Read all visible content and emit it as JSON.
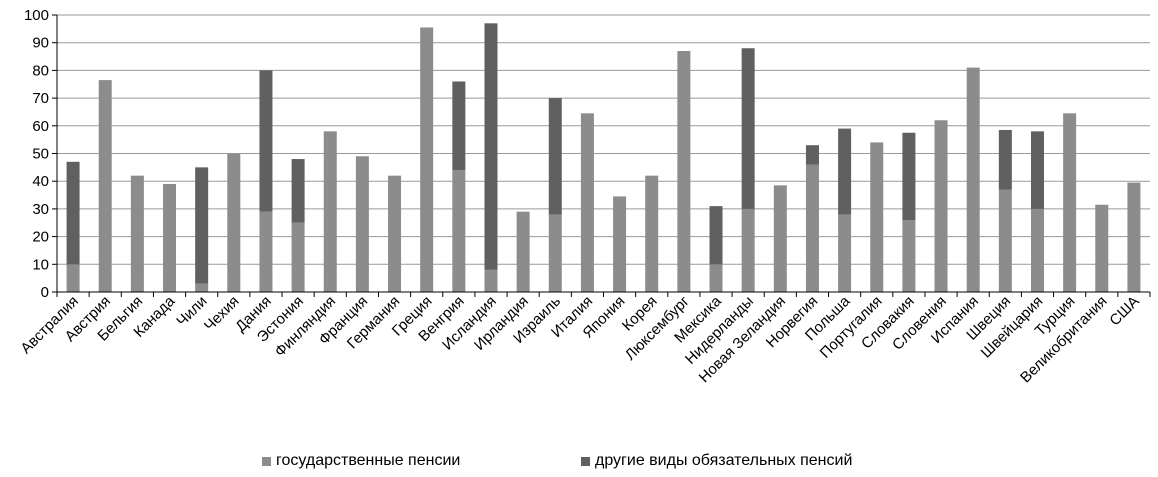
{
  "chart_data": {
    "type": "bar",
    "stacked": true,
    "categories": [
      "Австралия",
      "Австрия",
      "Бельгия",
      "Канада",
      "Чили",
      "Чехия",
      "Дания",
      "Эстония",
      "Финляндия",
      "Франция",
      "Германия",
      "Греция",
      "Венгрия",
      "Исландия",
      "Ирландия",
      "Израиль",
      "Италия",
      "Япония",
      "Корея",
      "Люксембург",
      "Мексика",
      "Нидерланды",
      "Новая Зеландия",
      "Норвегия",
      "Польша",
      "Португалия",
      "Словакия",
      "Словения",
      "Испания",
      "Швеция",
      "Швейцария",
      "Турция",
      "Великобритания",
      "США"
    ],
    "series": [
      {
        "name": "государственные пенсии",
        "color": "#8c8c8c",
        "values": [
          10,
          76.5,
          42,
          39,
          3,
          50,
          29,
          25,
          58,
          49,
          42,
          95.5,
          44,
          8,
          29,
          28,
          64.5,
          34.5,
          42,
          87,
          10,
          30,
          38.5,
          46,
          28,
          54,
          26,
          62,
          81,
          37,
          30,
          64.5,
          31.5,
          39.5
        ]
      },
      {
        "name": "другие виды обязательных пенсий",
        "color": "#606060",
        "values": [
          37,
          0,
          0,
          0,
          42,
          0,
          51,
          23,
          0,
          0,
          0,
          0,
          32,
          89,
          0,
          42,
          0,
          0,
          0,
          0,
          21,
          58,
          0,
          7,
          31,
          0,
          31.5,
          0,
          0,
          21.5,
          28,
          0,
          0,
          0
        ]
      }
    ],
    "ylim": [
      0,
      100
    ],
    "yticks": [
      0,
      10,
      20,
      30,
      40,
      50,
      60,
      70,
      80,
      90,
      100
    ],
    "grid": true,
    "legend_position": "bottom",
    "title": "",
    "xlabel": "",
    "ylabel": ""
  }
}
